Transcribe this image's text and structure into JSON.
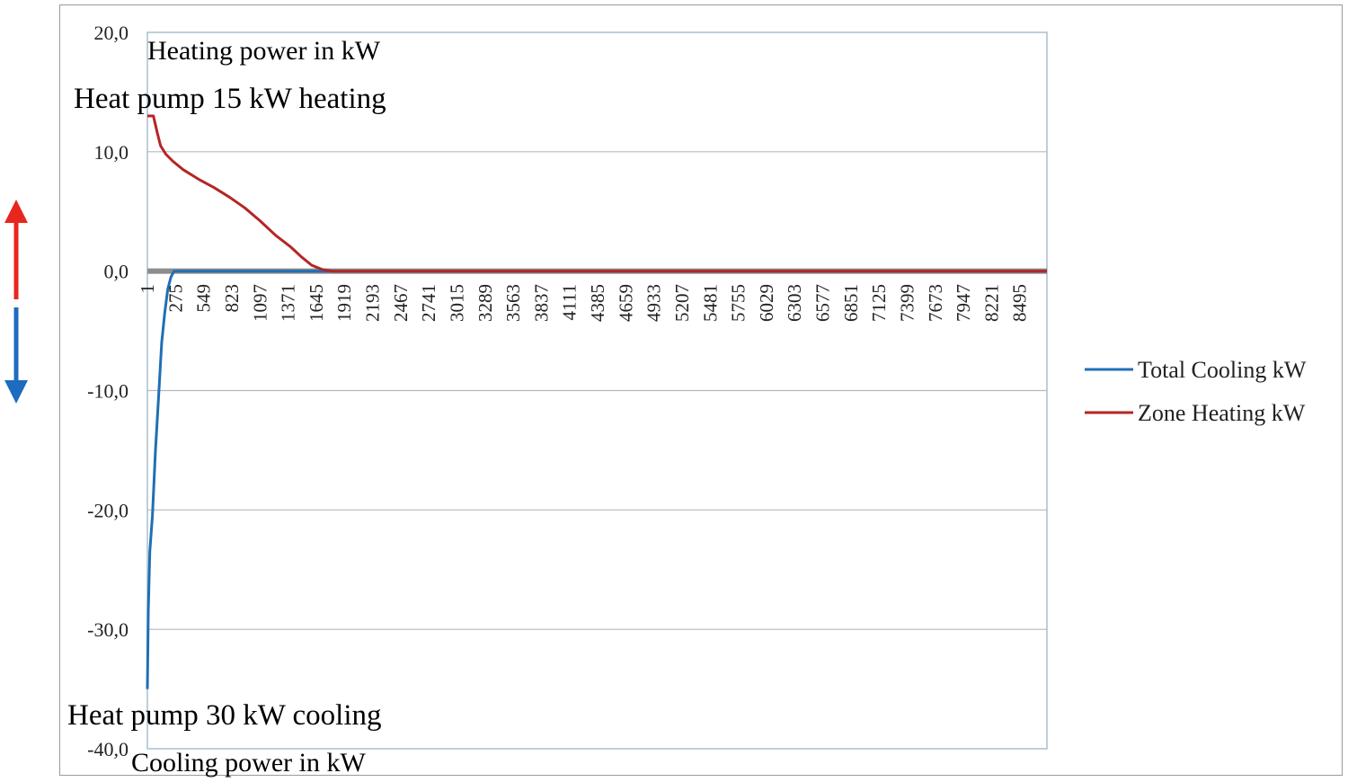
{
  "chart_data": {
    "type": "line",
    "ylim": [
      -40,
      20
    ],
    "y_ticks": [
      "20,0",
      "10,0",
      "0,0",
      "-10,0",
      "-20,0",
      "-30,0",
      "-40,0"
    ],
    "y_tick_values": [
      20,
      10,
      0,
      -10,
      -20,
      -30,
      -40
    ],
    "x_range": [
      1,
      8760
    ],
    "x_ticks": [
      "1",
      "275",
      "549",
      "823",
      "1097",
      "1371",
      "1645",
      "1919",
      "2193",
      "2467",
      "2741",
      "3015",
      "3289",
      "3563",
      "3837",
      "4111",
      "4385",
      "4659",
      "4933",
      "5207",
      "5481",
      "5755",
      "6029",
      "6303",
      "6577",
      "6851",
      "7125",
      "7399",
      "7673",
      "7947",
      "8221",
      "8495"
    ],
    "grid": "horizontal",
    "legend_position": "right",
    "annotations": {
      "heating_axis": "Heating power in kW",
      "heat_pump_heating": "Heat pump 15 kW heating",
      "heat_pump_cooling": "Heat pump 30 kW cooling",
      "cooling_axis": "Cooling power in kW"
    },
    "series": [
      {
        "name": "Total Cooling kW",
        "color": "#1f6fb5",
        "x": [
          1,
          10,
          25,
          50,
          80,
          110,
          140,
          170,
          200,
          230,
          260,
          300,
          8760
        ],
        "y": [
          -35,
          -28.5,
          -23.5,
          -20.5,
          -15,
          -10.5,
          -6,
          -3.5,
          -1.5,
          -0.5,
          0,
          0,
          0
        ]
      },
      {
        "name": "Zone Heating kW",
        "color": "#b52525",
        "x": [
          1,
          60,
          100,
          130,
          180,
          250,
          350,
          500,
          650,
          800,
          950,
          1100,
          1250,
          1400,
          1500,
          1600,
          1700,
          1800,
          1900,
          8760
        ],
        "y": [
          13,
          13,
          11.5,
          10.5,
          9.8,
          9.2,
          8.5,
          7.7,
          7.0,
          6.2,
          5.3,
          4.2,
          3.0,
          2.0,
          1.2,
          0.5,
          0.15,
          0,
          0,
          0
        ]
      }
    ]
  }
}
